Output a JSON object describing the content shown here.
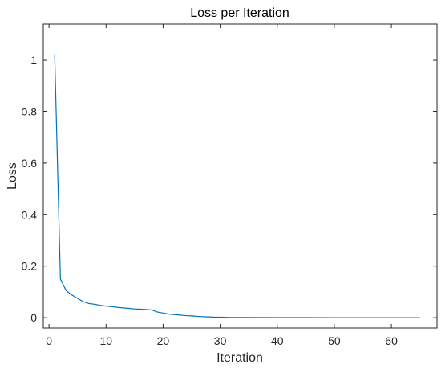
{
  "chart_data": {
    "type": "line",
    "title": "Loss per Iteration",
    "xlabel": "Iteration",
    "ylabel": "Loss",
    "xlim": [
      -1,
      68
    ],
    "ylim": [
      -0.04,
      1.14
    ],
    "xticks": [
      0,
      10,
      20,
      30,
      40,
      50,
      60
    ],
    "yticks": [
      0,
      0.2,
      0.4,
      0.6,
      0.8,
      1
    ],
    "ytick_labels": [
      "0",
      "0.2",
      "0.4",
      "0.6",
      "0.8",
      "1"
    ],
    "grid": false,
    "line_color": "#0072bd",
    "series": [
      {
        "x": [
          1,
          2,
          3,
          4,
          5,
          6,
          7,
          8,
          9,
          10,
          11,
          12,
          13,
          14,
          15,
          16,
          17,
          18,
          19,
          20,
          21,
          22,
          23,
          24,
          25,
          26,
          27,
          28,
          29,
          30,
          32,
          35,
          40,
          45,
          50,
          55,
          60,
          65
        ],
        "y": [
          1.02,
          0.15,
          0.105,
          0.088,
          0.075,
          0.062,
          0.055,
          0.052,
          0.048,
          0.045,
          0.043,
          0.04,
          0.038,
          0.036,
          0.034,
          0.033,
          0.032,
          0.03,
          0.022,
          0.018,
          0.014,
          0.012,
          0.01,
          0.008,
          0.007,
          0.005,
          0.004,
          0.003,
          0.002,
          0.002,
          0.001,
          0.001,
          0.0005,
          0.0003,
          0.0002,
          0.0001,
          0.0001,
          0.0
        ]
      }
    ]
  }
}
